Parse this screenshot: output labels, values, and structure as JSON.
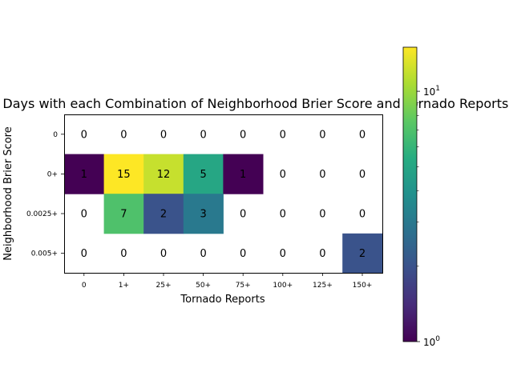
{
  "chart_data": {
    "type": "heatmap",
    "title": "Rate New Days with each Combination of Neighborhood Brier Score and Tornado Reports",
    "xlabel": "Tornado Reports",
    "ylabel": "Neighborhood Brier Score",
    "x_categories": [
      "0",
      "1+",
      "25+",
      "50+",
      "75+",
      "100+",
      "125+",
      "150+"
    ],
    "y_categories": [
      "0",
      "0+",
      "0.0025+",
      "0.005+"
    ],
    "values": [
      [
        0,
        0,
        0,
        0,
        0,
        0,
        0,
        0
      ],
      [
        1,
        15,
        12,
        5,
        1,
        0,
        0,
        0
      ],
      [
        0,
        7,
        2,
        3,
        0,
        0,
        0,
        0
      ],
      [
        0,
        0,
        0,
        0,
        0,
        0,
        0,
        2
      ]
    ],
    "color_scale": "log",
    "colormap": "viridis",
    "colorbar": {
      "range": [
        1,
        15
      ],
      "major_ticks": [
        1,
        10
      ],
      "major_tick_labels": [
        "10^0",
        "10^1"
      ]
    }
  }
}
